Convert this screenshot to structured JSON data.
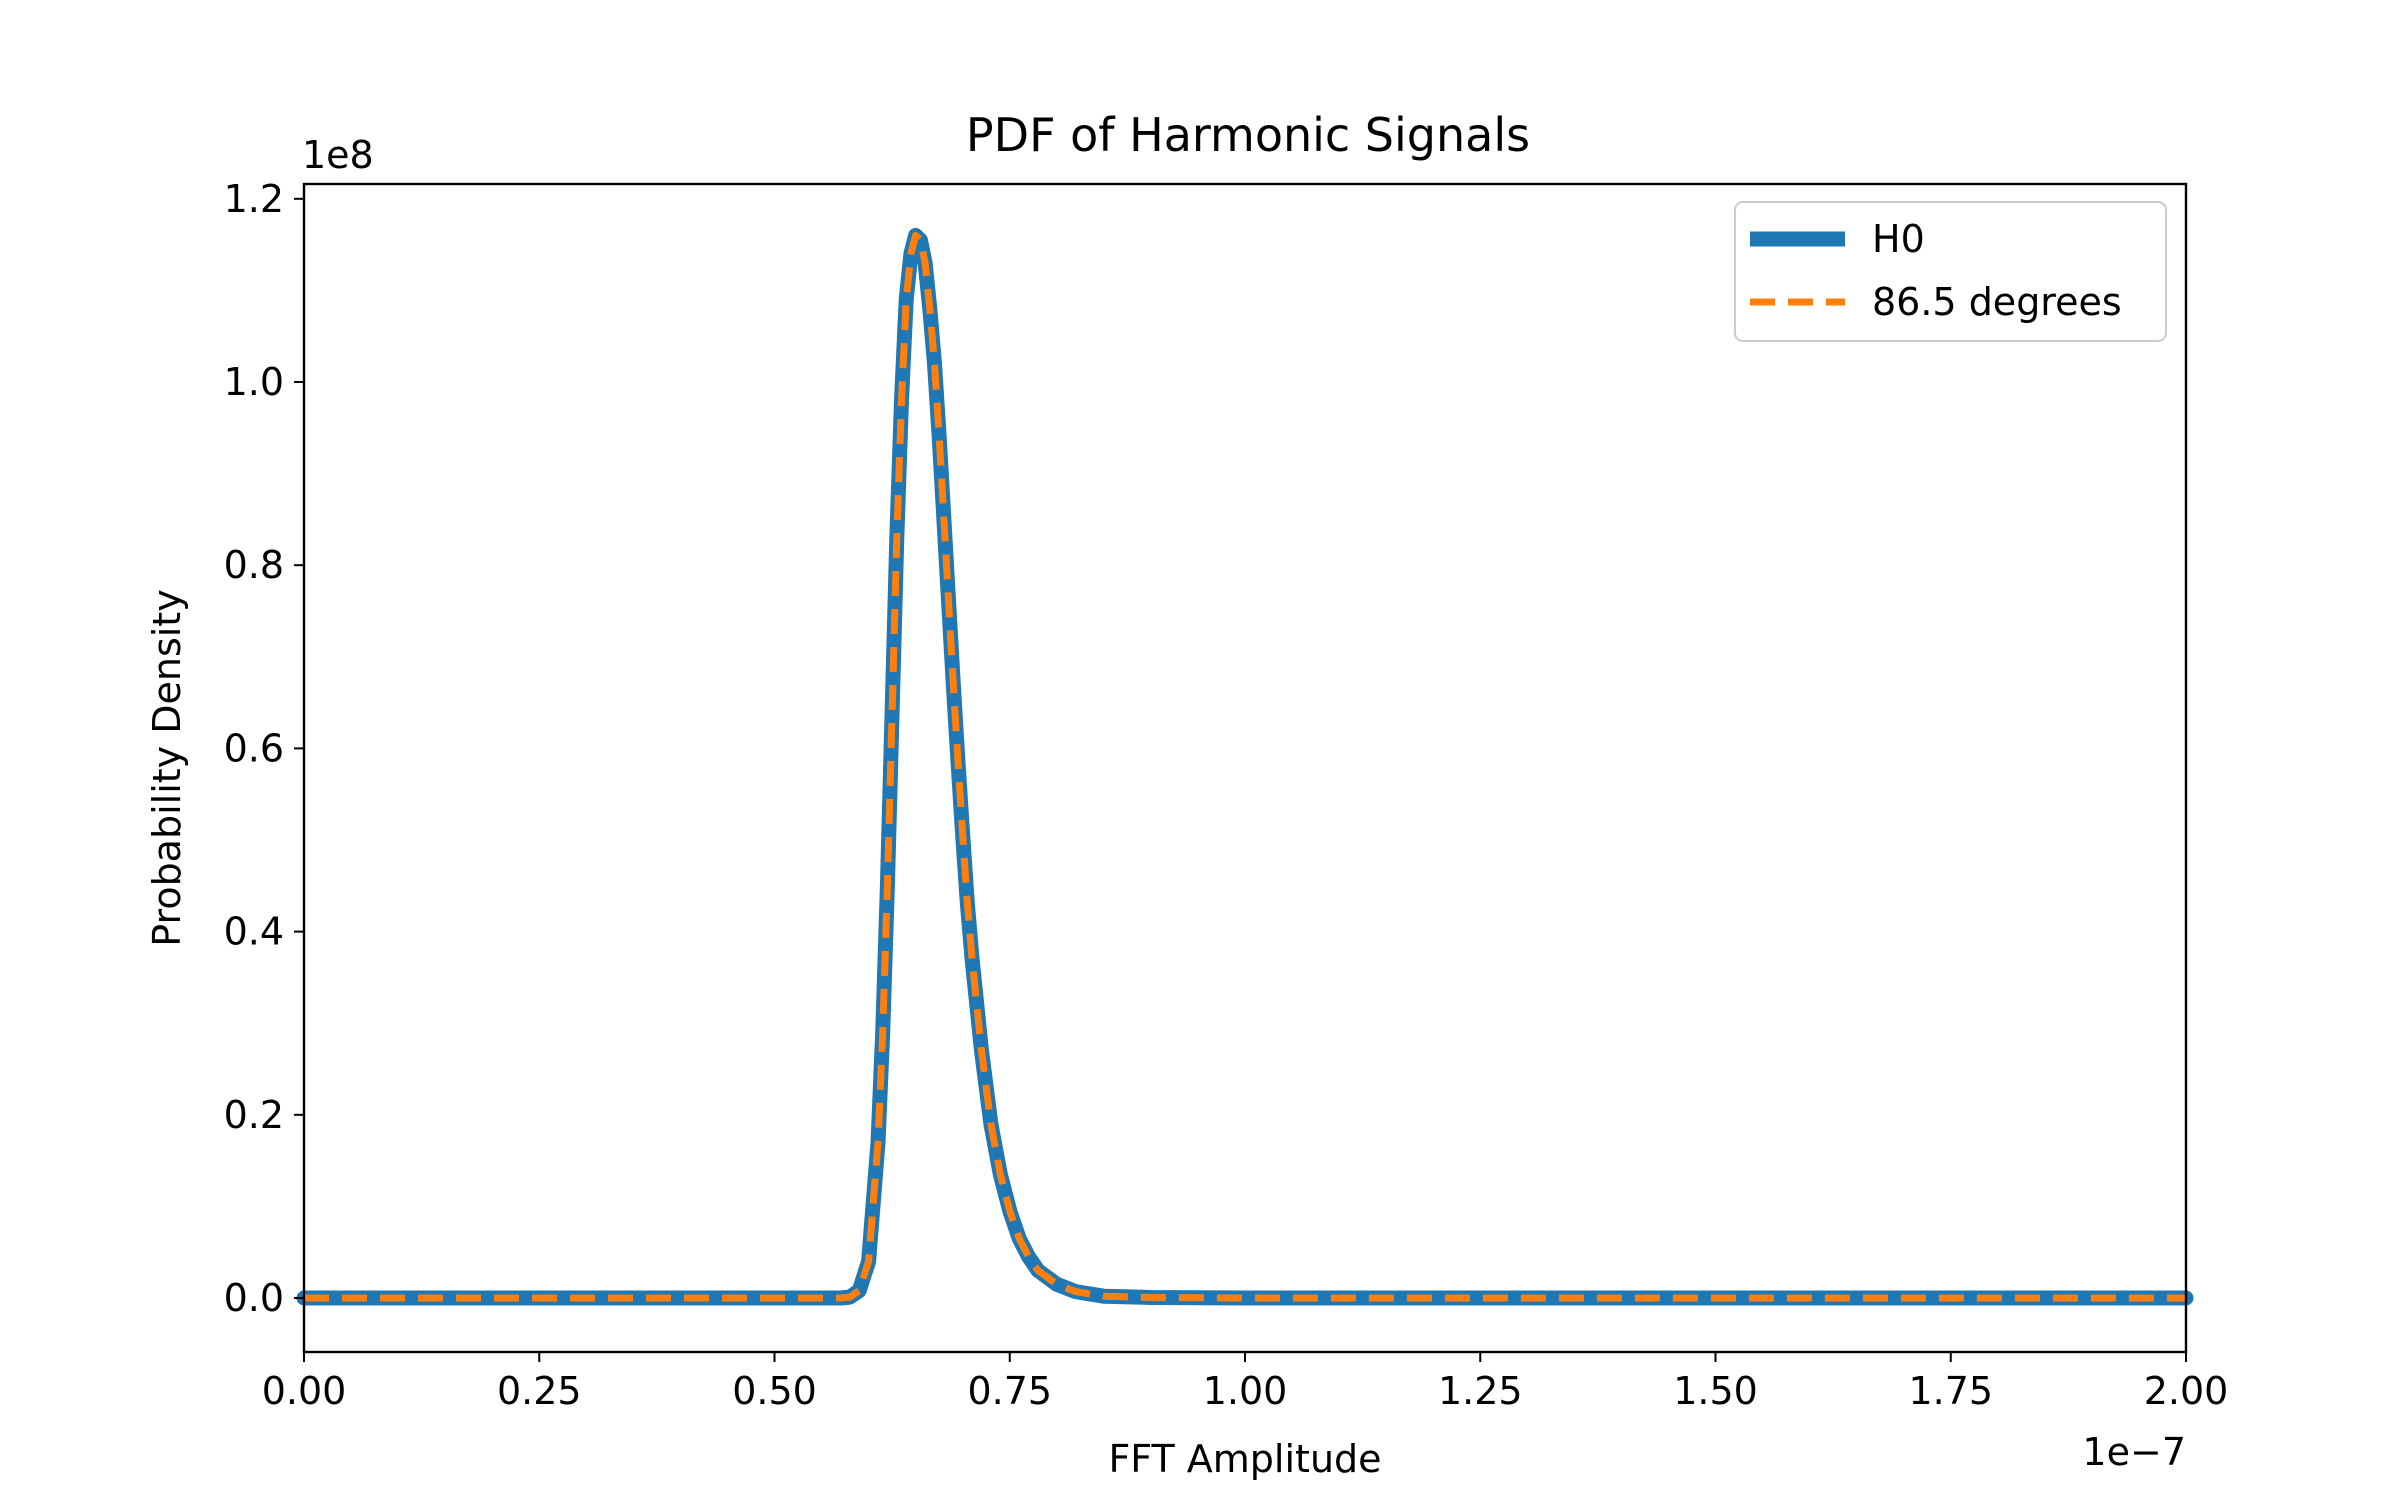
{
  "chart_data": {
    "type": "line",
    "title": "PDF of Harmonic Signals",
    "xlabel": "FFT Amplitude",
    "ylabel": "Probability Density",
    "x_offset_label": "1e−7",
    "y_offset_label": "1e8",
    "xlim": [
      0.0,
      2.0
    ],
    "ylim": [
      -0.055,
      1.22
    ],
    "x_ticks": [
      "0.00",
      "0.25",
      "0.50",
      "0.75",
      "1.00",
      "1.25",
      "1.50",
      "1.75",
      "2.00"
    ],
    "y_ticks": [
      "0.0",
      "0.2",
      "0.4",
      "0.6",
      "0.8",
      "1.0",
      "1.2"
    ],
    "grid": false,
    "legend_position": "top-right",
    "x": [
      0.0,
      0.1,
      0.2,
      0.3,
      0.4,
      0.5,
      0.55,
      0.57,
      0.58,
      0.59,
      0.6,
      0.61,
      0.615,
      0.62,
      0.625,
      0.63,
      0.635,
      0.64,
      0.645,
      0.65,
      0.655,
      0.66,
      0.665,
      0.67,
      0.675,
      0.68,
      0.685,
      0.69,
      0.695,
      0.7,
      0.705,
      0.71,
      0.72,
      0.73,
      0.74,
      0.75,
      0.76,
      0.77,
      0.78,
      0.8,
      0.82,
      0.85,
      0.9,
      1.0,
      1.25,
      1.5,
      1.75,
      2.0
    ],
    "series": [
      {
        "name": "H0",
        "color": "#1f77b4",
        "style": "solid",
        "values": [
          0,
          0,
          0,
          0,
          0,
          0,
          0,
          0,
          0.001,
          0.008,
          0.04,
          0.17,
          0.29,
          0.45,
          0.64,
          0.83,
          0.98,
          1.09,
          1.14,
          1.16,
          1.155,
          1.13,
          1.08,
          1.02,
          0.94,
          0.85,
          0.76,
          0.67,
          0.585,
          0.505,
          0.43,
          0.37,
          0.27,
          0.19,
          0.135,
          0.095,
          0.065,
          0.045,
          0.03,
          0.015,
          0.007,
          0.002,
          0.0005,
          0,
          0,
          0,
          0,
          0
        ]
      },
      {
        "name": "86.5 degrees",
        "color": "#ff7f0e",
        "style": "dashed",
        "values": [
          0,
          0,
          0,
          0,
          0,
          0,
          0,
          0,
          0.001,
          0.008,
          0.04,
          0.17,
          0.29,
          0.45,
          0.64,
          0.83,
          0.98,
          1.09,
          1.14,
          1.16,
          1.155,
          1.13,
          1.08,
          1.02,
          0.94,
          0.85,
          0.76,
          0.67,
          0.585,
          0.505,
          0.43,
          0.37,
          0.27,
          0.19,
          0.135,
          0.095,
          0.065,
          0.045,
          0.03,
          0.015,
          0.007,
          0.002,
          0.0005,
          0,
          0,
          0,
          0,
          0
        ]
      }
    ]
  }
}
